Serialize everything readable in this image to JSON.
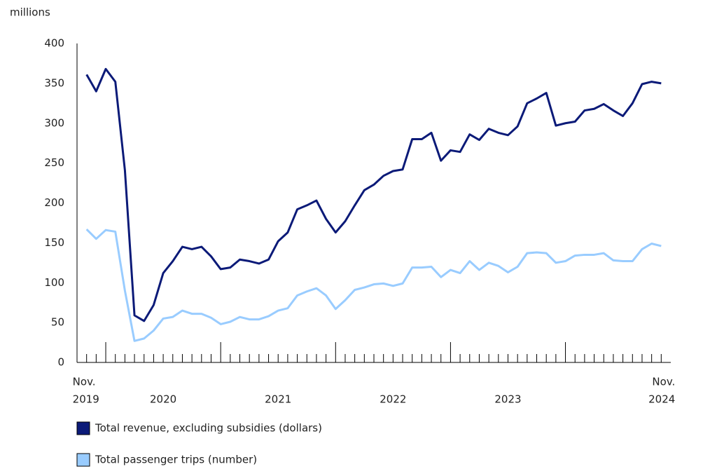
{
  "chart_data": {
    "type": "line",
    "y_axis_label": "millions",
    "categories": [
      "Nov.",
      null,
      null,
      null,
      null,
      null,
      null,
      null,
      null,
      null,
      null,
      null,
      null,
      null,
      null,
      null,
      null,
      null,
      null,
      null,
      null,
      null,
      null,
      null,
      null,
      null,
      null,
      null,
      null,
      null,
      null,
      null,
      null,
      null,
      null,
      null,
      null,
      null,
      null,
      null,
      null,
      null,
      null,
      null,
      null,
      null,
      null,
      null,
      null,
      null,
      null,
      null,
      null,
      null,
      null,
      null,
      null,
      null,
      null,
      null,
      "Nov."
    ],
    "year_labels": [
      "2019",
      "2020",
      "2021",
      "2022",
      "2023",
      "2024"
    ],
    "series": [
      {
        "name": "Total revenue, excluding subsidies (dollars)",
        "color": "#0b1a78",
        "values": [
          361,
          340,
          368,
          352,
          241,
          59,
          52,
          72,
          112,
          127,
          145,
          142,
          145,
          133,
          117,
          119,
          129,
          127,
          124,
          129,
          152,
          163,
          192,
          197,
          203,
          180,
          163,
          177,
          197,
          216,
          223,
          234,
          240,
          242,
          280,
          280,
          288,
          253,
          266,
          264,
          286,
          279,
          293,
          288,
          285,
          296,
          325,
          331,
          338,
          297,
          300,
          302,
          316,
          318,
          324,
          316,
          309,
          325,
          349,
          352,
          350
        ]
      },
      {
        "name": "Total passenger trips (number)",
        "color": "#99ccff",
        "values": [
          167,
          155,
          166,
          164,
          90,
          27,
          30,
          40,
          55,
          57,
          65,
          61,
          61,
          56,
          48,
          51,
          57,
          54,
          54,
          58,
          65,
          68,
          84,
          89,
          93,
          84,
          67,
          78,
          91,
          94,
          98,
          99,
          96,
          99,
          119,
          119,
          120,
          107,
          116,
          112,
          127,
          116,
          125,
          121,
          113,
          120,
          137,
          138,
          137,
          125,
          127,
          134,
          135,
          135,
          137,
          128,
          127,
          127,
          142,
          149,
          146
        ]
      }
    ],
    "ylim": [
      0,
      400
    ],
    "yticks": [
      0,
      50,
      100,
      150,
      200,
      250,
      300,
      350,
      400
    ],
    "grid": false
  }
}
